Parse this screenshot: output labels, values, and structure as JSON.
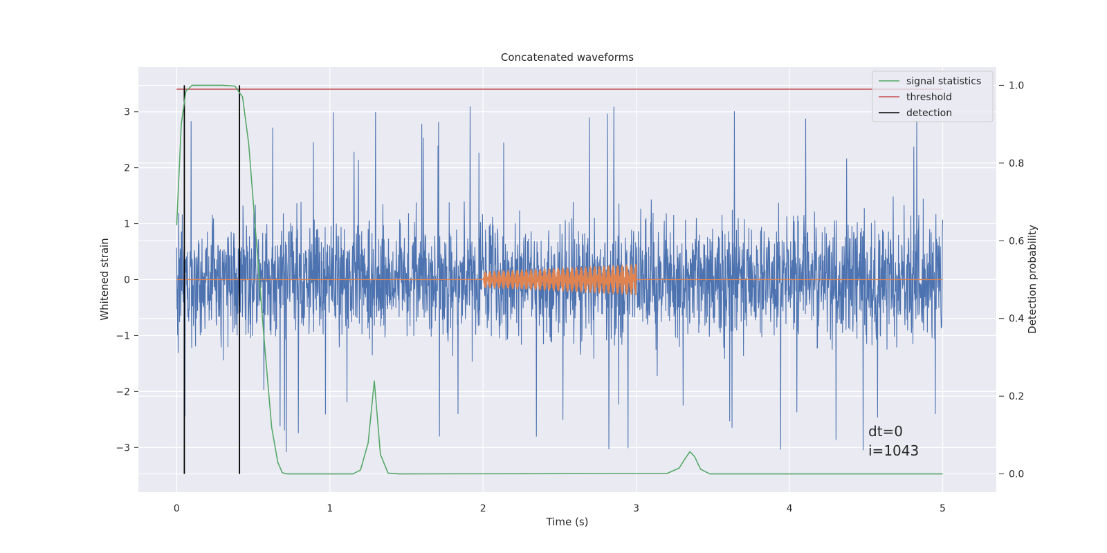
{
  "chart_data": {
    "type": "line",
    "title": "Concatenated waveforms",
    "xlabel": "Time (s)",
    "ylabel": "Whitened strain",
    "y2label": "Detection probability",
    "xlim": [
      -0.25,
      5.35
    ],
    "ylim": [
      -3.8,
      3.8
    ],
    "y2lim": [
      -0.047,
      1.047
    ],
    "xticks": [
      0,
      1,
      2,
      3,
      4,
      5
    ],
    "yticks": [
      -3,
      -2,
      -1,
      0,
      1,
      2,
      3
    ],
    "y2ticks": [
      0.0,
      0.2,
      0.4,
      0.6,
      0.8,
      1.0
    ],
    "xtick_labels": [
      "0",
      "1",
      "2",
      "3",
      "4",
      "5"
    ],
    "ytick_labels": [
      "−3",
      "−2",
      "−1",
      "0",
      "1",
      "2",
      "3"
    ],
    "y2tick_labels": [
      "0.0",
      "0.2",
      "0.4",
      "0.6",
      "0.8",
      "1.0"
    ],
    "grid": true,
    "legend_position": "top-right",
    "legend": [
      "signal statistics",
      "threshold",
      "detection"
    ],
    "colors": {
      "strain": "#4c72b0",
      "template": "#dd8452",
      "signal_statistics": "#55a868",
      "threshold": "#c44e52",
      "detection": "#000000",
      "axes_bg": "#eaeaf2",
      "grid": "#ffffff"
    },
    "series": [
      {
        "label": "whitened strain",
        "description": "noisy time series from 0 to 5 s",
        "x_range": [
          0,
          5
        ],
        "typical_amplitude": 0.75,
        "peak_max": 3.4,
        "peak_min": -3.5
      },
      {
        "label": "injected waveform",
        "x_flat": [
          [
            0,
            2
          ],
          [
            3,
            5
          ]
        ],
        "x_chirp": [
          2,
          3
        ],
        "chirp_amplitude_start": 0.15,
        "chirp_amplitude_end": 0.28
      },
      {
        "name": "signal statistics",
        "x": [
          0,
          0.03,
          0.06,
          0.1,
          0.2,
          0.3,
          0.38,
          0.43,
          0.47,
          0.52,
          0.57,
          0.62,
          0.66,
          0.69,
          0.72,
          1.15,
          1.2,
          1.25,
          1.29,
          1.33,
          1.38,
          1.45,
          3.2,
          3.28,
          3.32,
          3.35,
          3.38,
          3.42,
          3.48,
          5.0
        ],
        "y": [
          0.64,
          0.9,
          0.985,
          1.0,
          1.0,
          1.0,
          0.998,
          0.97,
          0.85,
          0.6,
          0.35,
          0.12,
          0.03,
          0.003,
          0.0,
          0.0,
          0.01,
          0.08,
          0.24,
          0.05,
          0.002,
          0.0,
          0.001,
          0.015,
          0.04,
          0.057,
          0.045,
          0.012,
          0.0,
          0.0
        ]
      },
      {
        "name": "threshold",
        "x": [
          0,
          5
        ],
        "y": [
          0.99,
          0.99
        ]
      },
      {
        "name": "detection",
        "x_values": [
          0.05,
          0.41
        ],
        "y_range": [
          0,
          1.0
        ]
      }
    ],
    "annotations": [
      "dt=0",
      "i=1043"
    ]
  }
}
